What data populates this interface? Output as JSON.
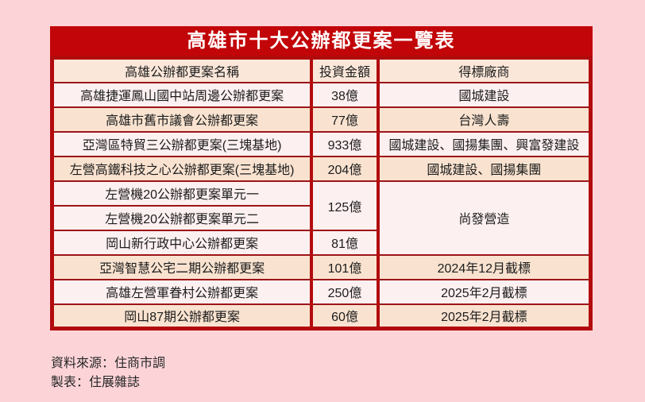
{
  "title": "高雄市十大公辦都更案一覽表",
  "chart_data": {
    "type": "table",
    "title": "高雄市十大公辦都更案一覽表",
    "columns": [
      "高雄公辦都更案名稱",
      "投資金額",
      "得標廠商"
    ],
    "rows": [
      {
        "name": "高雄捷運鳳山國中站周邊公辦都更案",
        "amount": "38億",
        "winner": "國城建設"
      },
      {
        "name": "高雄市舊市議會公辦都更案",
        "amount": "77億",
        "winner": "台灣人壽"
      },
      {
        "name": "亞灣區特貿三公辦都更案(三塊基地)",
        "amount": "933億",
        "winner": "國城建設、國揚集團、興富發建設"
      },
      {
        "name": "左營高鐵科技之心公辦都更案(三塊基地)",
        "amount": "204億",
        "winner": "國城建設、國揚集團"
      },
      {
        "name": "左營機20公辦都更案單元一",
        "amount": "125億",
        "winner": "尚發營造"
      },
      {
        "name": "左營機20公辦都更案單元二",
        "amount": "125億",
        "winner": "尚發營造"
      },
      {
        "name": "岡山新行政中心公辦都更案",
        "amount": "81億",
        "winner": "尚發營造"
      },
      {
        "name": "亞灣智慧公宅二期公辦都更案",
        "amount": "101億",
        "winner": "2024年12月截標"
      },
      {
        "name": "高雄左營軍眷村公辦都更案",
        "amount": "250億",
        "winner": "2025年2月截標"
      },
      {
        "name": "岡山87期公辦都更案",
        "amount": "60億",
        "winner": "2025年2月截標"
      }
    ],
    "merged_cells": [
      {
        "column": "投資金額",
        "row_indexes": [
          4,
          5
        ],
        "value": "125億"
      },
      {
        "column": "得標廠商",
        "row_indexes": [
          4,
          5,
          6
        ],
        "value": "尚發營造"
      }
    ],
    "legend_position": "none",
    "grid": true
  },
  "footer": {
    "source": "資料來源：住商市調",
    "credit": "製表：住展雜誌"
  },
  "colors": {
    "page_background": "#fcd4d8",
    "title_background": "#c20508",
    "title_text": "#ffffff",
    "header_row_background": "#fbe7d9",
    "row_light": "#fdf0f1",
    "row_peach": "#f9e3d0",
    "thick_border": "#b20b0e",
    "thin_border": "#9c1518",
    "body_text": "#1c1c1c"
  }
}
